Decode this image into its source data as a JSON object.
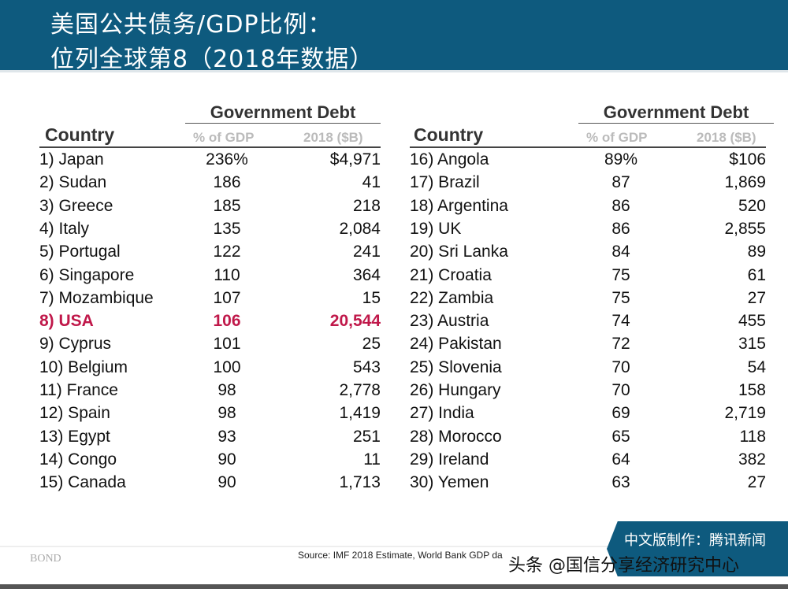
{
  "title": {
    "line1": "美国公共债务/GDP比例：",
    "line2": "位列全球第8（2018年数据）"
  },
  "table_headers": {
    "group": "Government Debt",
    "country": "Country",
    "pct": "% of GDP",
    "usd": "2018 ($B)"
  },
  "left_rows": [
    {
      "country": "1) Japan",
      "pct": "236%",
      "usd": "$4,971"
    },
    {
      "country": "2) Sudan",
      "pct": "186",
      "usd": "41"
    },
    {
      "country": "3) Greece",
      "pct": "185",
      "usd": "218"
    },
    {
      "country": "4) Italy",
      "pct": "135",
      "usd": "2,084"
    },
    {
      "country": "5) Portugal",
      "pct": "122",
      "usd": "241"
    },
    {
      "country": "6) Singapore",
      "pct": "110",
      "usd": "364"
    },
    {
      "country": "7) Mozambique",
      "pct": "107",
      "usd": "15"
    },
    {
      "country": "8) USA",
      "pct": "106",
      "usd": "20,544"
    },
    {
      "country": "9) Cyprus",
      "pct": "101",
      "usd": "25"
    },
    {
      "country": "10) Belgium",
      "pct": "100",
      "usd": "543"
    },
    {
      "country": "11) France",
      "pct": "98",
      "usd": "2,778"
    },
    {
      "country": "12) Spain",
      "pct": "98",
      "usd": "1,419"
    },
    {
      "country": "13) Egypt",
      "pct": "93",
      "usd": "251"
    },
    {
      "country": "14) Congo",
      "pct": "90",
      "usd": "11"
    },
    {
      "country": "15) Canada",
      "pct": "90",
      "usd": "1,713"
    }
  ],
  "right_rows": [
    {
      "country": "16) Angola",
      "pct": "89%",
      "usd": "$106"
    },
    {
      "country": "17) Brazil",
      "pct": "87",
      "usd": "1,869"
    },
    {
      "country": "18) Argentina",
      "pct": "86",
      "usd": "520"
    },
    {
      "country": "19) UK",
      "pct": "86",
      "usd": "2,855"
    },
    {
      "country": "20) Sri Lanka",
      "pct": "84",
      "usd": "89"
    },
    {
      "country": "21) Croatia",
      "pct": "75",
      "usd": "61"
    },
    {
      "country": "22) Zambia",
      "pct": "75",
      "usd": "27"
    },
    {
      "country": "23) Austria",
      "pct": "74",
      "usd": "455"
    },
    {
      "country": "24) Pakistan",
      "pct": "72",
      "usd": "315"
    },
    {
      "country": "25) Slovenia",
      "pct": "70",
      "usd": "54"
    },
    {
      "country": "26) Hungary",
      "pct": "70",
      "usd": "158"
    },
    {
      "country": "27) India",
      "pct": "69",
      "usd": "2,719"
    },
    {
      "country": "28) Morocco",
      "pct": "65",
      "usd": "118"
    },
    {
      "country": "29) Ireland",
      "pct": "64",
      "usd": "382"
    },
    {
      "country": "30) Yemen",
      "pct": "63",
      "usd": "27"
    }
  ],
  "highlight_color": "#c0184a",
  "footer": {
    "logo": "BOND",
    "source": "Source: IMF 2018 Estimate, World Bank GDP da",
    "badge": "中文版制作：腾讯新闻",
    "watermark": "头条 @国信分享经济研究中心"
  }
}
